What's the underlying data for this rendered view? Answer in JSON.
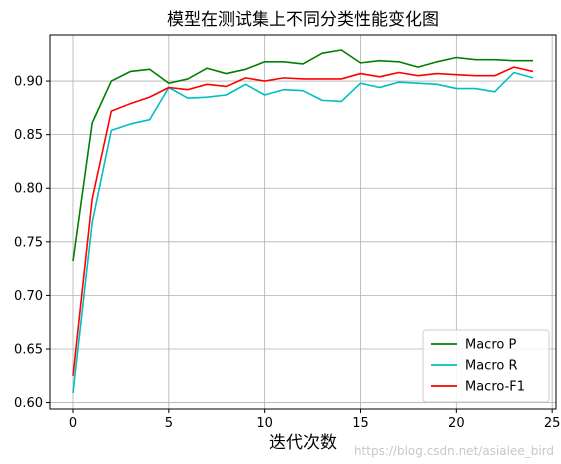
{
  "chart_data": {
    "type": "line",
    "title": "模型在测试集上不同分类性能变化图",
    "xlabel": "迭代次数",
    "ylabel": "",
    "xlim": [
      -1.2,
      25.2
    ],
    "ylim": [
      0.594,
      0.943
    ],
    "xticks": [
      0,
      5,
      10,
      15,
      20,
      25
    ],
    "yticks": [
      0.6,
      0.65,
      0.7,
      0.75,
      0.8,
      0.85,
      0.9
    ],
    "ytick_labels": [
      "0.60",
      "0.65",
      "0.70",
      "0.75",
      "0.80",
      "0.85",
      "0.90"
    ],
    "grid": true,
    "legend_position": "lower-right",
    "x": [
      0,
      1,
      2,
      3,
      4,
      5,
      6,
      7,
      8,
      9,
      10,
      11,
      12,
      13,
      14,
      15,
      16,
      17,
      18,
      19,
      20,
      21,
      22,
      23,
      24
    ],
    "series": [
      {
        "name": "Macro P",
        "color": "#008000",
        "values": [
          0.732,
          0.861,
          0.9,
          0.909,
          0.911,
          0.898,
          0.902,
          0.912,
          0.907,
          0.911,
          0.918,
          0.918,
          0.916,
          0.926,
          0.929,
          0.917,
          0.919,
          0.918,
          0.913,
          0.918,
          0.922,
          0.92,
          0.92,
          0.919,
          0.919
        ]
      },
      {
        "name": "Macro R",
        "color": "#00bfbf",
        "values": [
          0.609,
          0.768,
          0.854,
          0.86,
          0.864,
          0.894,
          0.884,
          0.885,
          0.887,
          0.897,
          0.887,
          0.892,
          0.891,
          0.882,
          0.881,
          0.898,
          0.894,
          0.899,
          0.898,
          0.897,
          0.893,
          0.893,
          0.89,
          0.908,
          0.903
        ]
      },
      {
        "name": "Macro-F1",
        "color": "#ff0000",
        "values": [
          0.625,
          0.79,
          0.872,
          0.879,
          0.885,
          0.894,
          0.892,
          0.897,
          0.895,
          0.903,
          0.9,
          0.903,
          0.902,
          0.902,
          0.902,
          0.907,
          0.904,
          0.908,
          0.905,
          0.907,
          0.906,
          0.905,
          0.905,
          0.913,
          0.909
        ]
      }
    ]
  },
  "watermark": "https://blog.csdn.net/asialee_bird"
}
